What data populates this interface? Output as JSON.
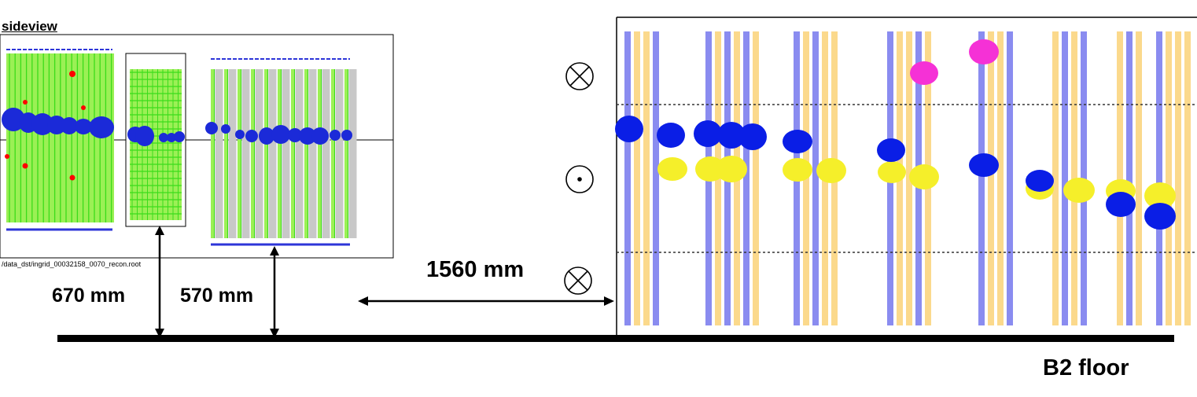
{
  "labels": {
    "sideview_title": "sideview",
    "file_path": "/data_dst/ingrid_00032158_0070_recon.root",
    "dim_670": "670 mm",
    "dim_570": "570 mm",
    "dim_1560": "1560 mm",
    "floor": "B2 floor"
  },
  "colors": {
    "hit_blue": "#0a1ee6",
    "hit_yellow": "#f5ef2a",
    "hit_magenta": "#f531d6",
    "scint_violet": "#8a8cf0",
    "scint_orange": "#fbd98c",
    "ingrid_green": "#9bf055",
    "ingrid_grid": "#3bdc1a",
    "red_marker": "#ff0000",
    "steel_gray": "#c8c8c8",
    "floor": "#000000"
  },
  "icons": [
    "beam-into-page-icon",
    "beam-out-of-page-icon",
    "beam-into-page-icon"
  ]
}
